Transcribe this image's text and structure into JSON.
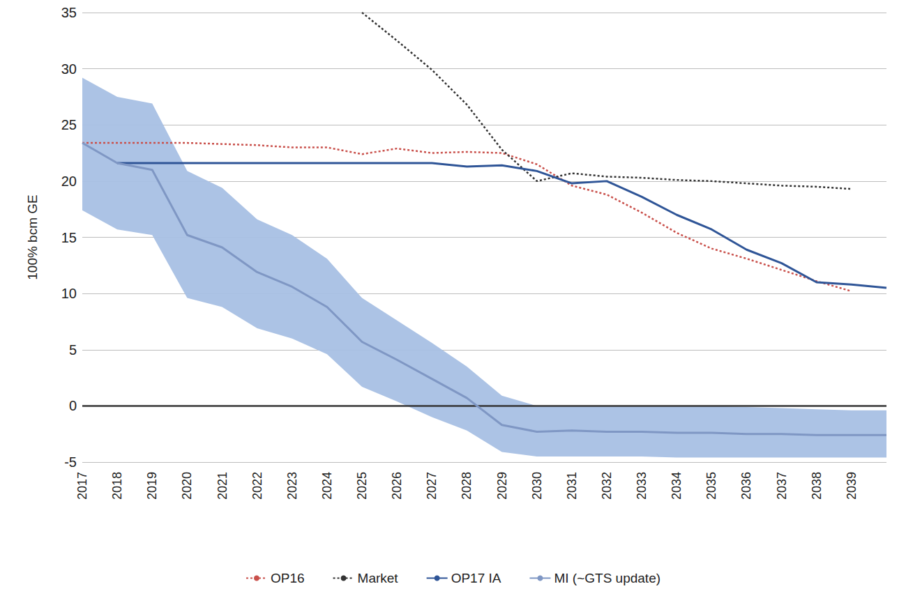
{
  "chart_data": {
    "type": "line",
    "y_label": "100% bcm GE",
    "categories": [
      "2017",
      "2018",
      "2019",
      "2020",
      "2021",
      "2022",
      "2023",
      "2024",
      "2025",
      "2026",
      "2027",
      "2028",
      "2029",
      "2030",
      "2031",
      "2032",
      "2033",
      "2034",
      "2035",
      "2036",
      "2037",
      "2038",
      "2039",
      null
    ],
    "ylim": [
      -5,
      35
    ],
    "yticks": [
      -5,
      0,
      5,
      10,
      15,
      20,
      25,
      30,
      35
    ],
    "grid": true,
    "legend": "bottom",
    "series": [
      {
        "name": "OP16",
        "color": "#c9504b",
        "line_style": "dotted",
        "values": [
          23.4,
          23.4,
          23.4,
          23.4,
          23.3,
          23.2,
          23.0,
          23.0,
          22.4,
          22.9,
          22.5,
          22.6,
          22.5,
          21.5,
          19.6,
          18.8,
          17.2,
          15.4,
          14.0,
          13.1,
          12.1,
          11.1,
          10.2,
          null
        ]
      },
      {
        "name": "Market",
        "color": "#333333",
        "line_style": "dotted",
        "values": [
          null,
          null,
          null,
          null,
          null,
          null,
          null,
          null,
          35,
          32.5,
          29.9,
          26.8,
          22.8,
          20.0,
          20.7,
          20.4,
          20.3,
          20.1,
          20.0,
          19.8,
          19.6,
          19.5,
          19.3,
          null
        ]
      },
      {
        "name": "OP17 IA",
        "color": "#2f5597",
        "line_style": "solid",
        "values": [
          null,
          21.6,
          21.6,
          21.6,
          21.6,
          21.6,
          21.6,
          21.6,
          21.6,
          21.6,
          21.6,
          21.3,
          21.4,
          20.9,
          19.8,
          20.0,
          18.6,
          17.0,
          15.7,
          13.9,
          12.7,
          11.0,
          10.8,
          10.5
        ]
      },
      {
        "name": "MI (~GTS update)",
        "color": "#7f97c4",
        "line_style": "solid",
        "values": [
          23.4,
          21.6,
          21.0,
          15.2,
          14.1,
          11.9,
          10.6,
          8.8,
          5.7,
          4.1,
          2.4,
          0.7,
          -1.7,
          -2.3,
          -2.2,
          -2.3,
          -2.3,
          -2.4,
          -2.4,
          -2.5,
          -2.5,
          -2.6,
          -2.6,
          -2.6
        ],
        "upper": [
          29.2,
          27.5,
          26.9,
          20.9,
          19.4,
          16.6,
          15.2,
          13.1,
          9.6,
          7.6,
          5.6,
          3.5,
          0.9,
          0.0,
          0.0,
          0.0,
          0.0,
          0.0,
          0.0,
          -0.1,
          -0.2,
          -0.3,
          -0.4,
          -0.4
        ],
        "lower": [
          17.4,
          15.7,
          15.2,
          9.6,
          8.8,
          6.9,
          6.0,
          4.6,
          1.7,
          0.4,
          -1.0,
          -2.2,
          -4.1,
          -4.5,
          -4.5,
          -4.5,
          -4.5,
          -4.6,
          -4.6,
          -4.6,
          -4.6,
          -4.6,
          -4.6,
          -4.6
        ]
      }
    ]
  }
}
